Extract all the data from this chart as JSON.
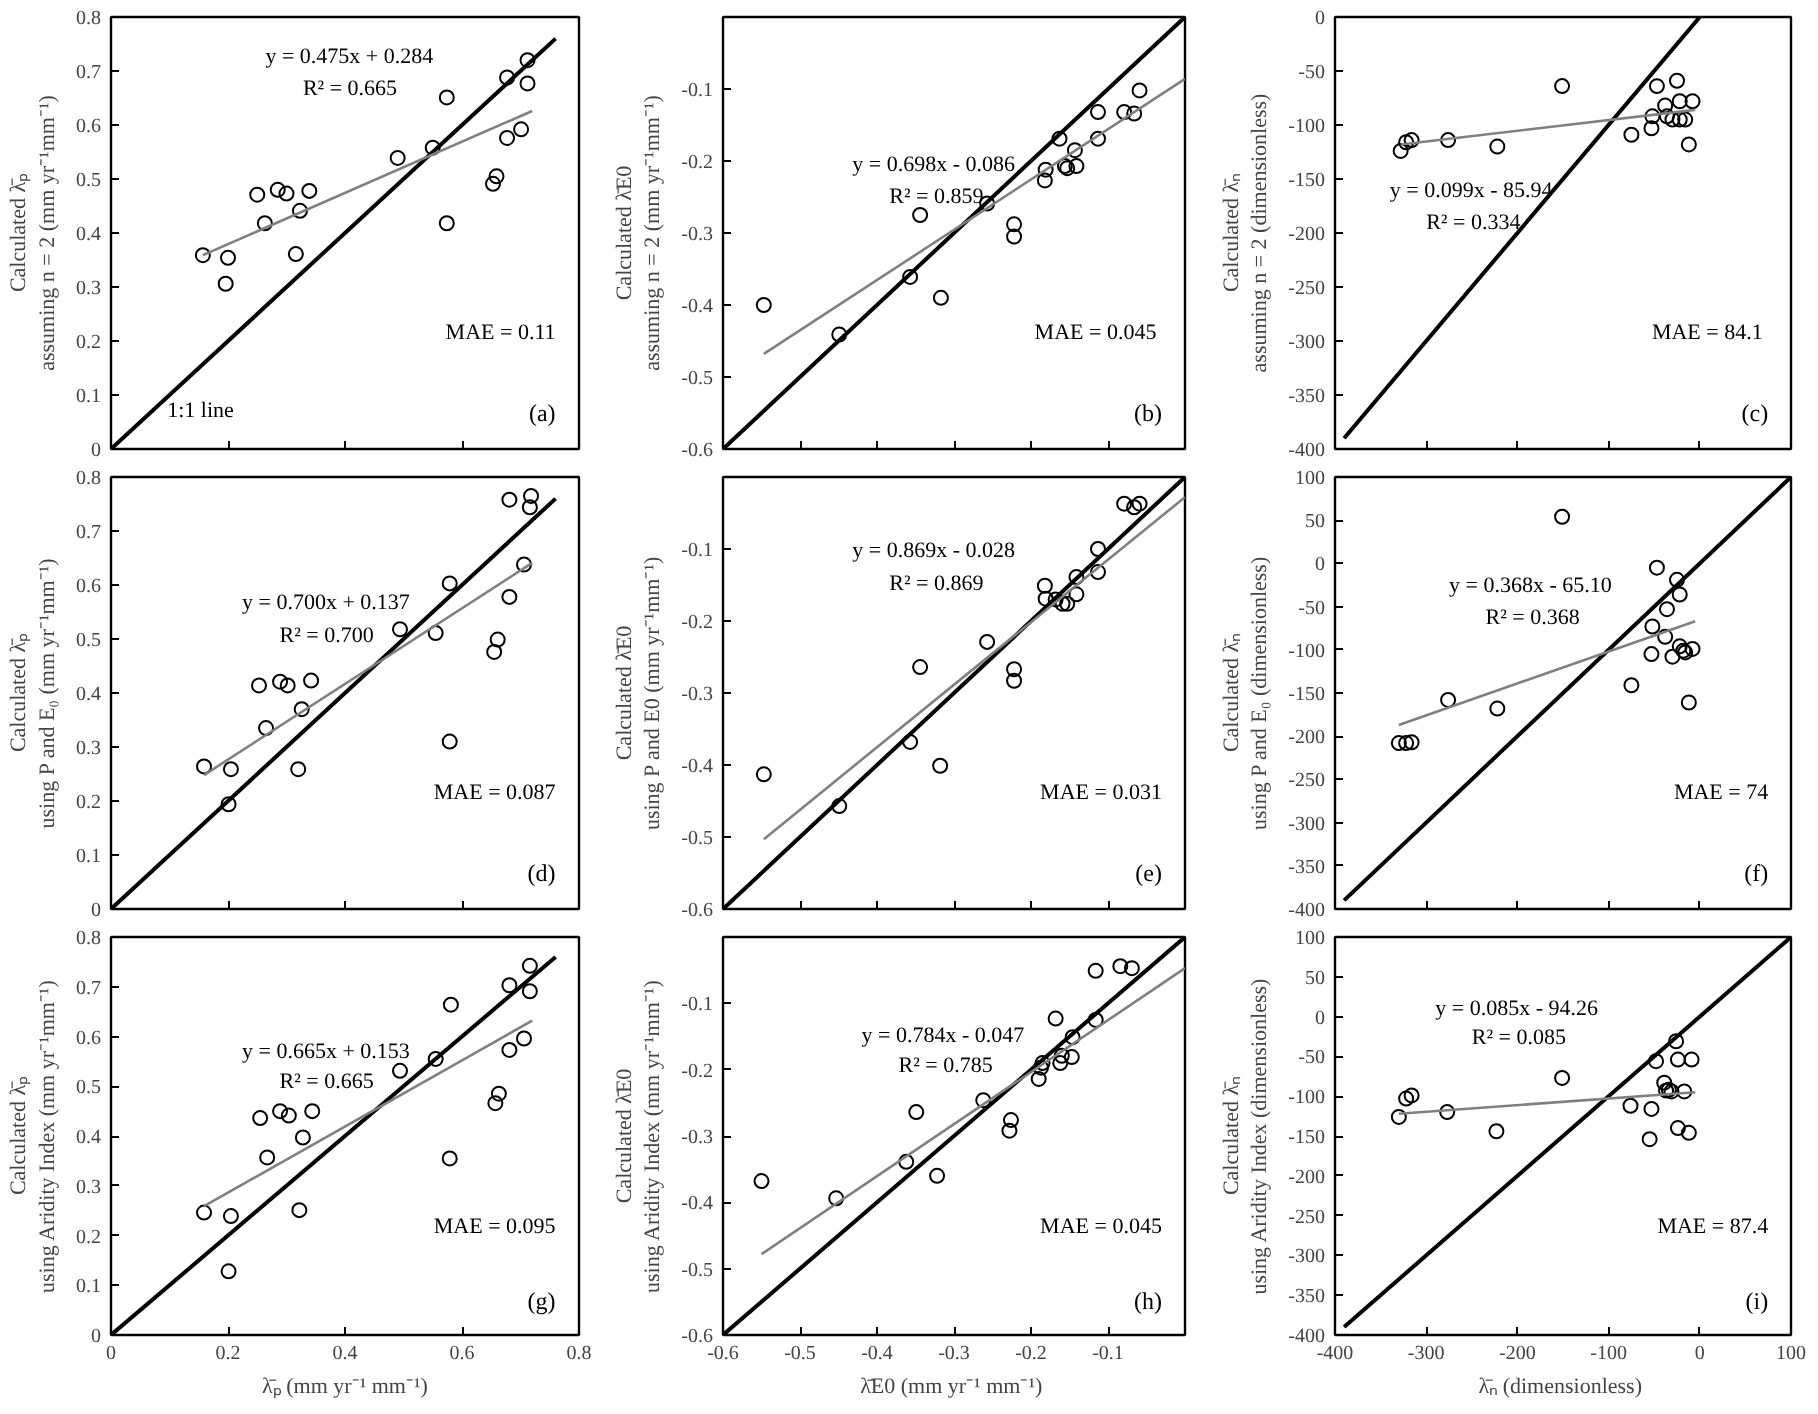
{
  "chart_data": [
    {
      "type": "scatter",
      "ylabel": "Calculated λ̄ₚ\nassuming n = 2 (mm yr⁻¹mm⁻¹)",
      "xlim": [
        0,
        0.8
      ],
      "ylim": [
        0,
        0.8
      ],
      "xticks": [
        0,
        0.2,
        0.4,
        0.6,
        0.8
      ],
      "yticks": [
        0,
        0.1,
        0.2,
        0.3,
        0.4,
        0.5,
        0.6,
        0.7,
        0.8
      ],
      "tick_labels": "y",
      "annotations": [
        "y = 0.475x + 0.284",
        "R² = 0.665",
        "MAE = 0.11",
        "(a)",
        "1:1 line"
      ],
      "series": [
        {
          "type": "scatter",
          "marker": "circle",
          "color": "#000000",
          "x": [
            0.157,
            0.2,
            0.196,
            0.25,
            0.263,
            0.285,
            0.3,
            0.323,
            0.339,
            0.316,
            0.49,
            0.55,
            0.574,
            0.574,
            0.653,
            0.659,
            0.677,
            0.712,
            0.712,
            0.677,
            0.701
          ],
          "values": [
            0.359,
            0.354,
            0.306,
            0.471,
            0.418,
            0.48,
            0.473,
            0.441,
            0.478,
            0.361,
            0.539,
            0.558,
            0.651,
            0.418,
            0.491,
            0.505,
            0.688,
            0.72,
            0.677,
            0.576,
            0.592
          ]
        },
        {
          "type": "line",
          "color": "#000000",
          "x": [
            0,
            0.76
          ],
          "values": [
            0,
            0.76
          ]
        },
        {
          "type": "line",
          "color": "#808080",
          "x": [
            0.157,
            0.72
          ],
          "values": [
            0.359,
            0.626
          ]
        }
      ]
    },
    {
      "type": "scatter",
      "ylabel": "Calculated λ̄E0\nassuming n = 2 (mm yr⁻¹mm⁻¹)",
      "xlim": [
        -0.6,
        0
      ],
      "ylim": [
        -0.6,
        0
      ],
      "xticks": [
        -0.6,
        -0.5,
        -0.4,
        -0.3,
        -0.2,
        -0.1
      ],
      "yticks": [
        -0.6,
        -0.5,
        -0.4,
        -0.3,
        -0.2,
        -0.1
      ],
      "tick_labels": "y",
      "annotations": [
        "y = 0.698x - 0.086",
        "R² = 0.859",
        "MAE =  0.045",
        "(b)"
      ],
      "series": [
        {
          "type": "scatter",
          "marker": "circle",
          "color": "#000000",
          "x": [
            -0.547,
            -0.449,
            -0.357,
            -0.317,
            -0.344,
            -0.257,
            -0.222,
            -0.222,
            -0.182,
            -0.181,
            -0.163,
            -0.156,
            -0.153,
            -0.143,
            -0.141,
            -0.113,
            -0.113,
            -0.079,
            -0.066,
            -0.059
          ],
          "values": [
            -0.4,
            -0.441,
            -0.361,
            -0.39,
            -0.275,
            -0.259,
            -0.288,
            -0.305,
            -0.227,
            -0.212,
            -0.169,
            -0.207,
            -0.21,
            -0.185,
            -0.207,
            -0.169,
            -0.132,
            -0.132,
            -0.134,
            -0.102
          ]
        },
        {
          "type": "line",
          "color": "#000000",
          "x": [
            -0.6,
            0
          ],
          "values": [
            -0.6,
            0
          ]
        },
        {
          "type": "line",
          "color": "#808080",
          "x": [
            -0.547,
            0
          ],
          "values": [
            -0.468,
            -0.086
          ]
        }
      ]
    },
    {
      "type": "scatter",
      "ylabel": "Calculated λ̄ₙ\nassuming n = 2 (dimensionless)",
      "xlim": [
        -400,
        100
      ],
      "ylim": [
        -400,
        0
      ],
      "xticks": [
        -400,
        -300,
        -200,
        -100,
        0,
        100
      ],
      "yticks": [
        -400,
        -350,
        -300,
        -250,
        -200,
        -150,
        -100,
        -50,
        0
      ],
      "tick_labels": "y",
      "annotations": [
        "y = 0.099x - 85.94",
        "R² = 0.334",
        "MAE =  84.1",
        "(c)"
      ],
      "series": [
        {
          "type": "scatter",
          "marker": "circle",
          "color": "#000000",
          "x": [
            -328,
            -322,
            -316,
            -276,
            -222,
            -151,
            -75,
            -53,
            -52,
            -47,
            -38,
            -36,
            -30,
            -25,
            -22,
            -22,
            -16,
            -12,
            -8
          ],
          "values": [
            -124,
            -116,
            -114,
            -114,
            -120,
            -64,
            -109,
            -103,
            -92,
            -64,
            -82,
            -92,
            -95,
            -59,
            -78,
            -95,
            -95,
            -118,
            -78
          ]
        },
        {
          "type": "line",
          "color": "#000000",
          "x": [
            -390,
            0
          ],
          "values": [
            -390,
            0
          ]
        },
        {
          "type": "line",
          "color": "#808080",
          "x": [
            -328,
            -5
          ],
          "values": [
            -118,
            -86
          ]
        }
      ]
    },
    {
      "type": "scatter",
      "ylabel": "Calculated λ̄ₚ\nusing P and E₀ (mm yr⁻¹mm⁻¹)",
      "xlim": [
        0,
        0.8
      ],
      "ylim": [
        0,
        0.8
      ],
      "xticks": [
        0,
        0.2,
        0.4,
        0.6,
        0.8
      ],
      "yticks": [
        0,
        0.1,
        0.2,
        0.3,
        0.4,
        0.5,
        0.6,
        0.7,
        0.8
      ],
      "tick_labels": "y",
      "annotations": [
        "y = 0.700x + 0.137",
        "R² = 0.700",
        "MAE = 0.087",
        "(d)"
      ],
      "series": [
        {
          "type": "scatter",
          "marker": "circle",
          "color": "#000000",
          "x": [
            0.159,
            0.201,
            0.205,
            0.253,
            0.265,
            0.289,
            0.302,
            0.326,
            0.342,
            0.32,
            0.494,
            0.555,
            0.579,
            0.579,
            0.655,
            0.661,
            0.681,
            0.681,
            0.706,
            0.716,
            0.718
          ],
          "values": [
            0.264,
            0.194,
            0.259,
            0.414,
            0.335,
            0.421,
            0.414,
            0.37,
            0.423,
            0.259,
            0.518,
            0.511,
            0.603,
            0.31,
            0.476,
            0.499,
            0.578,
            0.758,
            0.638,
            0.744,
            0.765
          ]
        },
        {
          "type": "line",
          "color": "#000000",
          "x": [
            0,
            0.76
          ],
          "values": [
            0,
            0.76
          ]
        },
        {
          "type": "line",
          "color": "#808080",
          "x": [
            0.159,
            0.72
          ],
          "values": [
            0.248,
            0.641
          ]
        }
      ]
    },
    {
      "type": "scatter",
      "ylabel": "Calculated λ̄E0\nusing P and E0 (mm yr⁻¹mm⁻¹)",
      "xlim": [
        -0.6,
        0
      ],
      "ylim": [
        -0.6,
        0
      ],
      "xticks": [
        -0.6,
        -0.5,
        -0.4,
        -0.3,
        -0.2,
        -0.1
      ],
      "yticks": [
        -0.6,
        -0.5,
        -0.4,
        -0.3,
        -0.2,
        -0.1
      ],
      "tick_labels": "y",
      "annotations": [
        "y = 0.869x - 0.028",
        "R² = 0.869",
        "MAE = 0.031",
        "(e)"
      ],
      "series": [
        {
          "type": "scatter",
          "marker": "circle",
          "color": "#000000",
          "x": [
            -0.547,
            -0.449,
            -0.357,
            -0.318,
            -0.344,
            -0.257,
            -0.222,
            -0.222,
            -0.182,
            -0.181,
            -0.168,
            -0.159,
            -0.153,
            -0.141,
            -0.141,
            -0.113,
            -0.113,
            -0.079,
            -0.066,
            -0.059
          ],
          "values": [
            -0.413,
            -0.457,
            -0.368,
            -0.401,
            -0.264,
            -0.229,
            -0.267,
            -0.283,
            -0.151,
            -0.169,
            -0.17,
            -0.176,
            -0.176,
            -0.139,
            -0.163,
            -0.1,
            -0.132,
            -0.037,
            -0.042,
            -0.037
          ]
        },
        {
          "type": "line",
          "color": "#000000",
          "x": [
            -0.6,
            0
          ],
          "values": [
            -0.6,
            0
          ]
        },
        {
          "type": "line",
          "color": "#808080",
          "x": [
            -0.547,
            0
          ],
          "values": [
            -0.503,
            -0.028
          ]
        }
      ]
    },
    {
      "type": "scatter",
      "ylabel": "Calculated λ̄ₙ\nusing P and E₀ (dimensionless)",
      "xlim": [
        -400,
        100
      ],
      "ylim": [
        -400,
        100
      ],
      "xticks": [
        -400,
        -300,
        -200,
        -100,
        0,
        100
      ],
      "yticks": [
        -400,
        -350,
        -300,
        -250,
        -200,
        -150,
        -100,
        -50,
        0,
        50,
        100
      ],
      "tick_labels": "y",
      "annotations": [
        "y = 0.368x - 65.10",
        "R² = 0.368",
        "MAE = 74",
        "(f)"
      ],
      "series": [
        {
          "type": "scatter",
          "marker": "circle",
          "color": "#000000",
          "x": [
            -330,
            -322,
            -316,
            -276,
            -222,
            -151,
            -75,
            -53,
            -52,
            -47,
            -38,
            -36,
            -30,
            -25,
            -22,
            -22,
            -16,
            -12,
            -8,
            -18
          ],
          "values": [
            -208,
            -208,
            -207,
            -158,
            -168,
            54,
            -141,
            -105,
            -73,
            -5,
            -85,
            -53,
            -108,
            -19,
            -36,
            -96,
            -103,
            -161,
            -99,
            -101
          ]
        },
        {
          "type": "line",
          "color": "#000000",
          "x": [
            -390,
            100
          ],
          "values": [
            -390,
            100
          ]
        },
        {
          "type": "line",
          "color": "#808080",
          "x": [
            -330,
            -5
          ],
          "values": [
            -187,
            -67
          ]
        }
      ]
    },
    {
      "type": "scatter",
      "xlabel": "λ̄ₚ (mm yr⁻¹ mm⁻¹)",
      "ylabel": "Calculated λ̄ₚ\nusing Aridity Index (mm yr⁻¹mm⁻¹)",
      "xlim": [
        0,
        0.8
      ],
      "ylim": [
        0,
        0.8
      ],
      "xticks": [
        0,
        0.2,
        0.4,
        0.6,
        0.8
      ],
      "yticks": [
        0,
        0.1,
        0.2,
        0.3,
        0.4,
        0.5,
        0.6,
        0.7,
        0.8
      ],
      "annotations": [
        "y = 0.665x + 0.153",
        "R² = 0.665",
        "MAE = 0.095",
        "(g)"
      ],
      "series": [
        {
          "type": "scatter",
          "marker": "circle",
          "color": "#000000",
          "x": [
            0.159,
            0.205,
            0.201,
            0.255,
            0.267,
            0.289,
            0.304,
            0.328,
            0.344,
            0.322,
            0.494,
            0.555,
            0.581,
            0.579,
            0.657,
            0.663,
            0.681,
            0.716,
            0.716,
            0.681,
            0.706
          ],
          "values": [
            0.246,
            0.239,
            0.128,
            0.436,
            0.357,
            0.45,
            0.441,
            0.397,
            0.45,
            0.251,
            0.531,
            0.555,
            0.664,
            0.355,
            0.466,
            0.485,
            0.703,
            0.742,
            0.691,
            0.573,
            0.596
          ]
        },
        {
          "type": "line",
          "color": "#000000",
          "x": [
            0,
            0.76
          ],
          "values": [
            0,
            0.76
          ]
        },
        {
          "type": "line",
          "color": "#808080",
          "x": [
            0.159,
            0.72
          ],
          "values": [
            0.259,
            0.632
          ]
        }
      ]
    },
    {
      "type": "scatter",
      "xlabel": "λ̄E0  (mm yr⁻¹ mm⁻¹)",
      "ylabel": "Calculated λ̄E0\nusing Aridity Index (mm yr⁻¹mm⁻¹)",
      "xlim": [
        -0.6,
        0
      ],
      "ylim": [
        -0.6,
        0
      ],
      "xticks": [
        -0.6,
        -0.5,
        -0.4,
        -0.3,
        -0.2,
        -0.1
      ],
      "yticks": [
        -0.6,
        -0.5,
        -0.4,
        -0.3,
        -0.2,
        -0.1
      ],
      "annotations": [
        "y = 0.784x - 0.047",
        "R² = 0.785",
        "MAE = 0.045",
        "(h)"
      ],
      "series": [
        {
          "type": "scatter",
          "marker": "circle",
          "color": "#000000",
          "x": [
            -0.55,
            -0.453,
            -0.362,
            -0.322,
            -0.349,
            -0.262,
            -0.226,
            -0.228,
            -0.19,
            -0.187,
            -0.185,
            -0.168,
            -0.162,
            -0.16,
            -0.147,
            -0.146,
            -0.116,
            -0.116,
            -0.084,
            -0.069
          ],
          "values": [
            -0.368,
            -0.394,
            -0.339,
            -0.36,
            -0.264,
            -0.246,
            -0.276,
            -0.292,
            -0.214,
            -0.197,
            -0.19,
            -0.123,
            -0.19,
            -0.179,
            -0.181,
            -0.151,
            -0.051,
            -0.125,
            -0.044,
            -0.047
          ]
        },
        {
          "type": "line",
          "color": "#000000",
          "x": [
            -0.6,
            0
          ],
          "values": [
            -0.6,
            0
          ]
        },
        {
          "type": "line",
          "color": "#808080",
          "x": [
            -0.55,
            0
          ],
          "values": [
            -0.478,
            -0.047
          ]
        }
      ]
    },
    {
      "type": "scatter",
      "xlabel": "λ̄ₙ  (dimensionless)",
      "ylabel": "Calculated λ̄ₙ\nusing Aridity Index (dimensionless)",
      "xlim": [
        -400,
        100
      ],
      "ylim": [
        -400,
        100
      ],
      "xticks": [
        -400,
        -300,
        -200,
        -100,
        0,
        100
      ],
      "yticks": [
        -400,
        -350,
        -300,
        -250,
        -200,
        -150,
        -100,
        -50,
        0,
        50,
        100
      ],
      "annotations": [
        "y = 0.085x - 94.26",
        "R² = 0.085",
        "MAE = 87.4",
        "(i)"
      ],
      "series": [
        {
          "type": "scatter",
          "marker": "circle",
          "color": "#000000",
          "x": [
            -330,
            -322,
            -316,
            -277,
            -223,
            -151,
            -76,
            -53,
            -55,
            -48,
            -39,
            -37,
            -31,
            -26,
            -24,
            -24,
            -17,
            -12,
            -9,
            -34
          ],
          "values": [
            -126,
            -103,
            -99,
            -120,
            -144,
            -77,
            -112,
            -116,
            -154,
            -56,
            -83,
            -93,
            -94,
            -31,
            -54,
            -140,
            -94,
            -146,
            -54,
            -92
          ]
        },
        {
          "type": "line",
          "color": "#000000",
          "x": [
            -390,
            100
          ],
          "values": [
            -390,
            100
          ]
        },
        {
          "type": "line",
          "color": "#808080",
          "x": [
            -330,
            -5
          ],
          "values": [
            -122,
            -95
          ]
        }
      ]
    }
  ]
}
